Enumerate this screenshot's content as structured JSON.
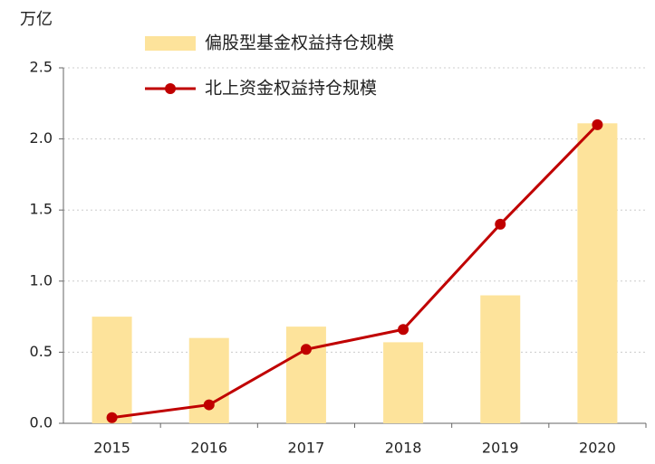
{
  "chart_data": {
    "type": "bar",
    "y_label": "万亿",
    "categories": [
      "2015",
      "2016",
      "2017",
      "2018",
      "2019",
      "2020"
    ],
    "series": [
      {
        "name": "偏股型基金权益持仓规模",
        "type": "bar",
        "color": "#fde39b",
        "values": [
          0.75,
          0.6,
          0.68,
          0.57,
          0.9,
          2.11
        ]
      },
      {
        "name": "北上资金权益持仓规模",
        "type": "line",
        "color": "#c00000",
        "values": [
          0.04,
          0.13,
          0.52,
          0.66,
          1.4,
          2.1
        ]
      }
    ],
    "ylim": [
      0,
      2.5
    ],
    "yticks": [
      {
        "value": 0,
        "label": "0.0"
      },
      0.5,
      {
        "value": 1,
        "label": "1.0"
      },
      1.5,
      {
        "value": 2,
        "label": "2.0"
      },
      2.5
    ],
    "grid": true
  }
}
